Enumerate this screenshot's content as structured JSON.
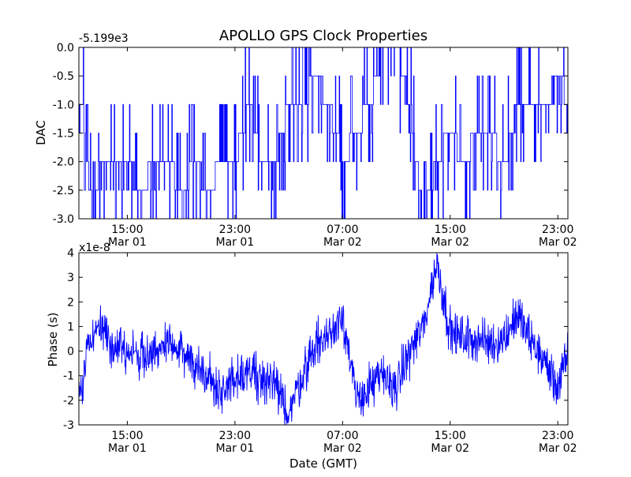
{
  "title": "APOLLO GPS Clock Properties",
  "xlabel": "Date (GMT)",
  "colors": {
    "line": "#0000ff",
    "axes": "#000000",
    "background": "#ffffff"
  },
  "x_ticks": [
    {
      "time": "15:00",
      "date": "Mar 01"
    },
    {
      "time": "23:00",
      "date": "Mar 01"
    },
    {
      "time": "07:00",
      "date": "Mar 02"
    },
    {
      "time": "15:00",
      "date": "Mar 02"
    },
    {
      "time": "23:00",
      "date": "Mar 02"
    }
  ],
  "chart_data": [
    {
      "type": "line",
      "ylabel": "DAC",
      "offset_label": "-5.199e3",
      "ylim": [
        -3.0,
        0.0
      ],
      "y_ticks": [
        "-3.0",
        "-2.5",
        "-2.0",
        "-1.5",
        "-1.0",
        "-0.5",
        "0.0"
      ],
      "x": [
        "Mar 01 11:40",
        "Mar 01 12:00",
        "Mar 01 12:30",
        "Mar 01 13:00",
        "Mar 01 14:00",
        "Mar 01 15:00",
        "Mar 01 16:00",
        "Mar 01 17:00",
        "Mar 01 18:00",
        "Mar 01 19:00",
        "Mar 01 20:00",
        "Mar 01 21:00",
        "Mar 01 22:00",
        "Mar 01 23:00",
        "Mar 02 00:00",
        "Mar 02 01:00",
        "Mar 02 02:00",
        "Mar 02 03:00",
        "Mar 02 04:00",
        "Mar 02 05:00",
        "Mar 02 06:00",
        "Mar 02 07:00",
        "Mar 02 08:00",
        "Mar 02 09:00",
        "Mar 02 10:00",
        "Mar 02 11:00",
        "Mar 02 12:00",
        "Mar 02 13:00",
        "Mar 02 14:00",
        "Mar 02 15:00",
        "Mar 02 16:00",
        "Mar 02 17:00",
        "Mar 02 18:00",
        "Mar 02 19:00",
        "Mar 02 20:00",
        "Mar 02 21:00",
        "Mar 02 22:00",
        "Mar 02 23:00",
        "Mar 02 23:50"
      ],
      "values": [
        -1.0,
        -2.0,
        -3.0,
        -2.0,
        -2.0,
        -2.0,
        -2.5,
        -2.0,
        -2.0,
        -2.5,
        -2.0,
        -2.5,
        -2.0,
        -2.0,
        -1.0,
        -2.0,
        -2.0,
        -1.0,
        -1.0,
        -0.5,
        -1.0,
        -2.0,
        -1.5,
        -1.0,
        -0.0,
        -0.0,
        -1.0,
        -3.0,
        -2.0,
        -1.5,
        -2.0,
        -1.5,
        -1.5,
        -2.0,
        -1.0,
        -1.0,
        -1.0,
        -0.5,
        -1.0
      ]
    },
    {
      "type": "line",
      "ylabel": "Phase (s)",
      "offset_label": "x1e-8",
      "ylim": [
        -3,
        4
      ],
      "y_ticks": [
        "-3",
        "-2",
        "-1",
        "0",
        "1",
        "2",
        "3",
        "4"
      ],
      "x": [
        "Mar 01 11:40",
        "Mar 01 12:00",
        "Mar 01 12:30",
        "Mar 01 13:00",
        "Mar 01 14:00",
        "Mar 01 15:00",
        "Mar 01 16:00",
        "Mar 01 17:00",
        "Mar 01 18:00",
        "Mar 01 19:00",
        "Mar 01 20:00",
        "Mar 01 21:00",
        "Mar 01 22:00",
        "Mar 01 23:00",
        "Mar 02 00:00",
        "Mar 02 01:00",
        "Mar 02 02:00",
        "Mar 02 03:00",
        "Mar 02 04:00",
        "Mar 02 05:00",
        "Mar 02 06:00",
        "Mar 02 07:00",
        "Mar 02 08:00",
        "Mar 02 09:00",
        "Mar 02 10:00",
        "Mar 02 11:00",
        "Mar 02 12:00",
        "Mar 02 13:00",
        "Mar 02 14:00",
        "Mar 02 15:00",
        "Mar 02 16:00",
        "Mar 02 17:00",
        "Mar 02 18:00",
        "Mar 02 19:00",
        "Mar 02 20:00",
        "Mar 02 21:00",
        "Mar 02 22:00",
        "Mar 02 23:00",
        "Mar 02 23:50"
      ],
      "values": [
        -1.5,
        0.2,
        0.8,
        1.0,
        0.3,
        0.0,
        -0.2,
        0.0,
        0.2,
        0.0,
        -0.5,
        -1.0,
        -1.8,
        -1.0,
        -0.8,
        -1.0,
        -1.5,
        -2.5,
        -1.0,
        0.3,
        0.6,
        1.6,
        -2.0,
        -1.5,
        -1.0,
        -1.5,
        0.0,
        1.0,
        3.6,
        0.8,
        0.5,
        0.5,
        0.3,
        0.5,
        1.5,
        0.4,
        -0.4,
        -1.5,
        0.0
      ]
    }
  ]
}
